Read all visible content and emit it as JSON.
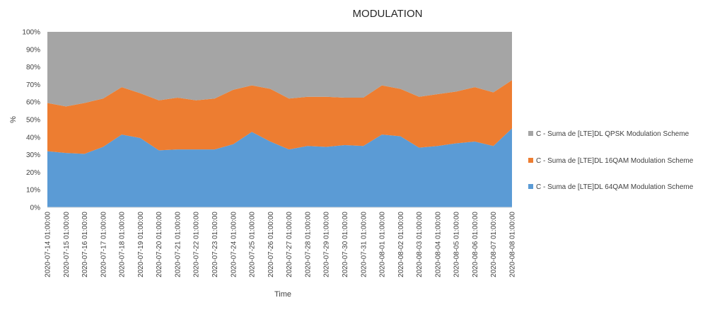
{
  "chart_data": {
    "type": "area",
    "stacked": "percent",
    "title": "MODULATION",
    "xlabel": "Time",
    "ylabel": "%",
    "ylim": [
      0,
      100
    ],
    "y_ticks": [
      "0%",
      "10%",
      "20%",
      "30%",
      "40%",
      "50%",
      "60%",
      "70%",
      "80%",
      "90%",
      "100%"
    ],
    "grid": false,
    "legend_position": "right",
    "categories": [
      "2020-07-14 01:00:00",
      "2020-07-15 01:00:00",
      "2020-07-16 01:00:00",
      "2020-07-17 01:00:00",
      "2020-07-18 01:00:00",
      "2020-07-19 01:00:00",
      "2020-07-20 01:00:00",
      "2020-07-21 01:00:00",
      "2020-07-22 01:00:00",
      "2020-07-23 01:00:00",
      "2020-07-24 01:00:00",
      "2020-07-25 01:00:00",
      "2020-07-26 01:00:00",
      "2020-07-27 01:00:00",
      "2020-07-28 01:00:00",
      "2020-07-29 01:00:00",
      "2020-07-30 01:00:00",
      "2020-07-31 01:00:00",
      "2020-08-01 01:00:00",
      "2020-08-02 01:00:00",
      "2020-08-03 01:00:00",
      "2020-08-04 01:00:00",
      "2020-08-05 01:00:00",
      "2020-08-06 01:00:00",
      "2020-08-07 01:00:00",
      "2020-08-08 01:00:00"
    ],
    "series": [
      {
        "name": "C - Suma de [LTE]DL 64QAM Modulation Scheme",
        "color": "#5b9bd5",
        "values": [
          32,
          31,
          30.5,
          34.5,
          41.5,
          39.5,
          32.5,
          33,
          33,
          33,
          36,
          43,
          37.5,
          33,
          35,
          34.5,
          35.5,
          35,
          41.5,
          40.5,
          34,
          35,
          36.5,
          37.5,
          35,
          45
        ]
      },
      {
        "name": "C - Suma de [LTE]DL 16QAM Modulation Scheme",
        "color": "#ed7d31",
        "values": [
          27.5,
          26.5,
          29,
          27.5,
          27,
          25.5,
          28.5,
          29.5,
          28,
          29,
          31,
          26.5,
          30,
          29,
          28,
          28.5,
          27,
          27.5,
          28,
          27,
          29,
          29.5,
          29.5,
          31,
          30.5,
          27.5
        ]
      },
      {
        "name": "C - Suma de [LTE]DL QPSK Modulation Scheme",
        "color": "#a5a5a5",
        "values": [
          40.5,
          42.5,
          40.5,
          38,
          31.5,
          35,
          39,
          37.5,
          39,
          38,
          33,
          30.5,
          32.5,
          38,
          37,
          37,
          37.5,
          37.5,
          30.5,
          32.5,
          37,
          35.5,
          34,
          31.5,
          34.5,
          27.5
        ]
      }
    ],
    "legend_order": [
      2,
      1,
      0
    ]
  }
}
